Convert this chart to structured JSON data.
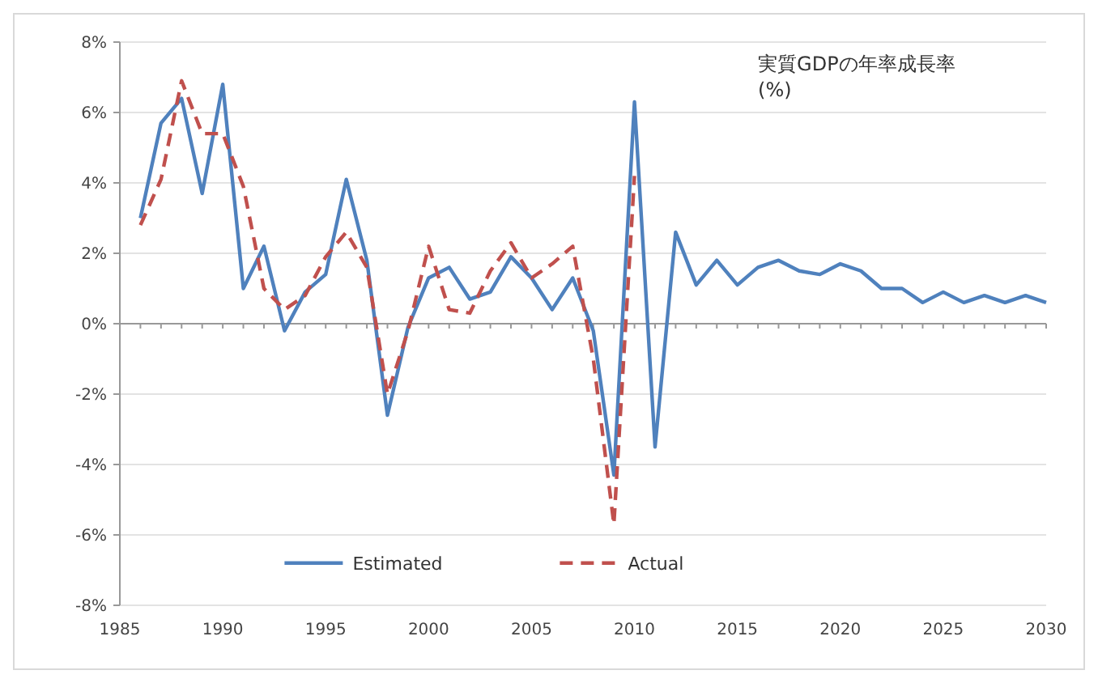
{
  "chart_data": {
    "type": "line",
    "title": "実質GDPの年率成長率\n(%)",
    "x": [
      1986,
      1987,
      1988,
      1989,
      1990,
      1991,
      1992,
      1993,
      1994,
      1995,
      1996,
      1997,
      1998,
      1999,
      2000,
      2001,
      2002,
      2003,
      2004,
      2005,
      2006,
      2007,
      2008,
      2009,
      2010,
      2011,
      2012,
      2013,
      2014,
      2015,
      2016,
      2017,
      2018,
      2019,
      2020,
      2021,
      2022,
      2023,
      2024,
      2025,
      2026,
      2027,
      2028,
      2029,
      2030
    ],
    "series": [
      {
        "name": "Estimated",
        "color": "#4f81bd",
        "line_style": "solid",
        "values": [
          3.0,
          5.7,
          6.4,
          3.7,
          6.8,
          1.0,
          2.2,
          -0.2,
          0.9,
          1.4,
          4.1,
          1.8,
          -2.6,
          -0.1,
          1.3,
          1.6,
          0.7,
          0.9,
          1.9,
          1.3,
          0.4,
          1.3,
          -0.2,
          -4.3,
          6.3,
          -3.5,
          2.6,
          1.1,
          1.8,
          1.1,
          1.6,
          1.8,
          1.5,
          1.4,
          1.7,
          1.5,
          1.0,
          1.0,
          0.6,
          0.9,
          0.6,
          0.8,
          0.6,
          0.8,
          0.6
        ]
      },
      {
        "name": "Actual",
        "color": "#c0504d",
        "line_style": "dashed",
        "values": [
          2.8,
          4.1,
          6.9,
          5.4,
          5.4,
          3.9,
          1.0,
          0.4,
          0.8,
          1.9,
          2.6,
          1.6,
          -2.0,
          -0.2,
          2.2,
          0.4,
          0.3,
          1.5,
          2.3,
          1.3,
          1.7,
          2.2,
          -1.0,
          -5.7,
          4.2,
          null,
          null,
          null,
          null,
          null,
          null,
          null,
          null,
          null,
          null,
          null,
          null,
          null,
          null,
          null,
          null,
          null,
          null,
          null,
          null
        ]
      }
    ],
    "xlim": [
      1985,
      2030
    ],
    "xticks": [
      1985,
      1990,
      1995,
      2000,
      2005,
      2010,
      2015,
      2020,
      2025,
      2030
    ],
    "ylim": [
      -8,
      8
    ],
    "yticks": [
      {
        "value": -8,
        "label": "-8%"
      },
      {
        "value": -6,
        "label": "-6%"
      },
      {
        "value": -4,
        "label": "-4%"
      },
      {
        "value": -2,
        "label": "-2%"
      },
      {
        "value": 0,
        "label": "0%"
      },
      {
        "value": 2,
        "label": "2%"
      },
      {
        "value": 4,
        "label": "4%"
      },
      {
        "value": 6,
        "label": "6%"
      },
      {
        "value": 8,
        "label": "8%"
      }
    ],
    "grid": "y",
    "legend": "bottom",
    "marker": "none"
  }
}
